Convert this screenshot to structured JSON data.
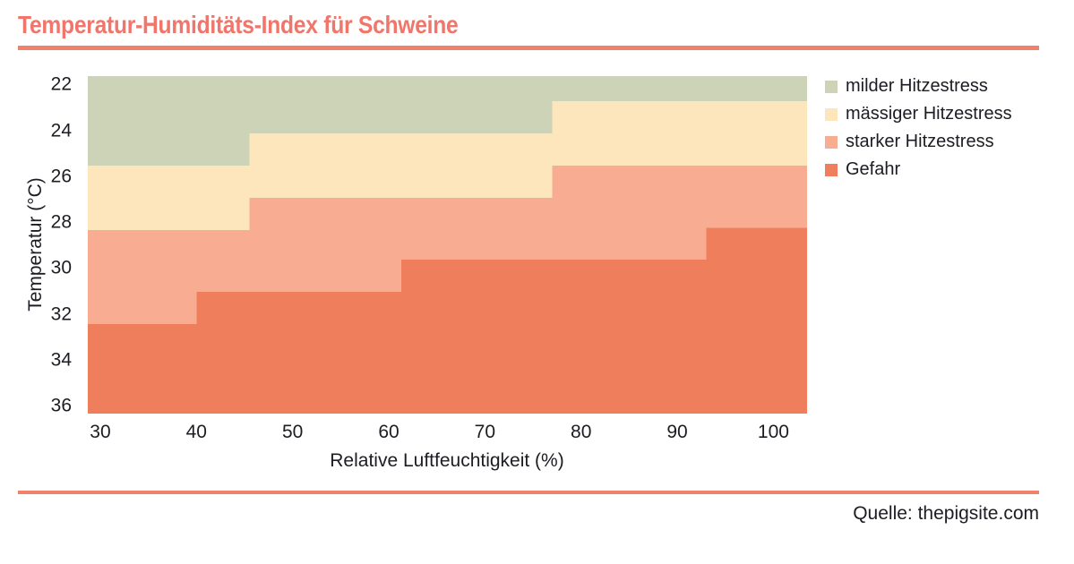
{
  "title": "Temperatur-Humiditäts-Index für Schweine",
  "source": "Quelle: thepigsite.com",
  "colors": {
    "title": "#F0766B",
    "rule": "#F0826B",
    "text": "#1C1C22"
  },
  "chart_data": {
    "type": "area",
    "title": "Temperatur-Humiditäts-Index für Schweine",
    "xlabel": "Relative Luftfeuchtigkeit (%)",
    "ylabel": "Temperatur (°C)",
    "xlim": [
      28.7,
      103.5
    ],
    "ylim": [
      21.6,
      36.3
    ],
    "y_inverted": true,
    "x_ticks": [
      30,
      40,
      50,
      60,
      70,
      80,
      90,
      100
    ],
    "y_ticks": [
      22,
      24,
      26,
      28,
      30,
      32,
      34,
      36
    ],
    "grid": false,
    "legend_position": "outside-upper-right",
    "zones": [
      {
        "label": "milder Hitzestress",
        "color": "#CDD3B6"
      },
      {
        "label": "mässiger Hitzestress",
        "color": "#FDE5BC"
      },
      {
        "label": "starker Hitzestress",
        "color": "#F8AD92"
      },
      {
        "label": "Gefahr",
        "color": "#EF7E5D"
      }
    ],
    "boundaries": [
      {
        "between": "milder-massiger",
        "steps": [
          {
            "h_from": 28.7,
            "h_to": 45.5,
            "t": 25.5
          },
          {
            "h_from": 45.5,
            "h_to": 77.0,
            "t": 24.1
          },
          {
            "h_from": 77.0,
            "h_to": 103.5,
            "t": 22.7
          }
        ]
      },
      {
        "between": "massiger-starker",
        "steps": [
          {
            "h_from": 28.7,
            "h_to": 45.5,
            "t": 28.3
          },
          {
            "h_from": 45.5,
            "h_to": 77.0,
            "t": 26.9
          },
          {
            "h_from": 77.0,
            "h_to": 103.5,
            "t": 25.5
          }
        ]
      },
      {
        "between": "starker-gefahr",
        "steps": [
          {
            "h_from": 28.7,
            "h_to": 40.0,
            "t": 32.4
          },
          {
            "h_from": 40.0,
            "h_to": 61.3,
            "t": 31.0
          },
          {
            "h_from": 61.3,
            "h_to": 93.0,
            "t": 29.6
          },
          {
            "h_from": 93.0,
            "h_to": 103.5,
            "t": 28.2
          }
        ]
      }
    ]
  }
}
